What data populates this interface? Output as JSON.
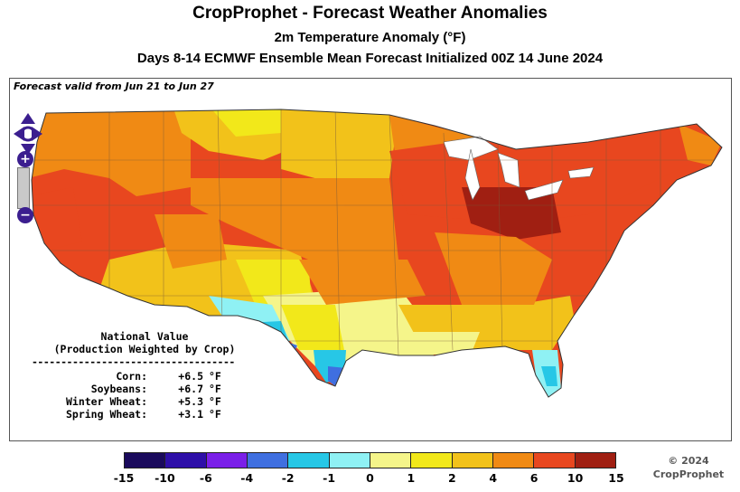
{
  "header": {
    "title": "CropProphet - Forecast Weather Anomalies",
    "subtitle": "2m Temperature Anomaly (°F)",
    "forecast_line": "Days 8-14 ECMWF Ensemble Mean Forecast Initialized 00Z 14 June 2024"
  },
  "map": {
    "valid_text": "Forecast valid from Jun 21 to Jun 27",
    "zoom_in_label": "+",
    "zoom_out_label": "−"
  },
  "national": {
    "heading1": "National Value",
    "heading2": "(Production Weighted by Crop)",
    "divider": "-----------------------------------",
    "rows": [
      {
        "crop": "Corn:",
        "value": "+6.5",
        "unit": "°F"
      },
      {
        "crop": "Soybeans:",
        "value": "+6.7",
        "unit": "°F"
      },
      {
        "crop": "Winter Wheat:",
        "value": "+5.3",
        "unit": "°F"
      },
      {
        "crop": "Spring Wheat:",
        "value": "+3.1",
        "unit": "°F"
      }
    ]
  },
  "legend": {
    "colors": [
      "#1a0a5c",
      "#2e0fa8",
      "#7a1fe8",
      "#3f6fe0",
      "#27c7e6",
      "#8ff1f4",
      "#f5f58a",
      "#f2e81a",
      "#f2c21a",
      "#f08a14",
      "#e8471f",
      "#a01f12"
    ],
    "labels": [
      "-15",
      "-10",
      "-6",
      "-4",
      "-2",
      "-1",
      "0",
      "1",
      "2",
      "4",
      "6",
      "10",
      "15"
    ]
  },
  "copyright": {
    "line1": "© 2024",
    "line2": "CropProphet"
  }
}
